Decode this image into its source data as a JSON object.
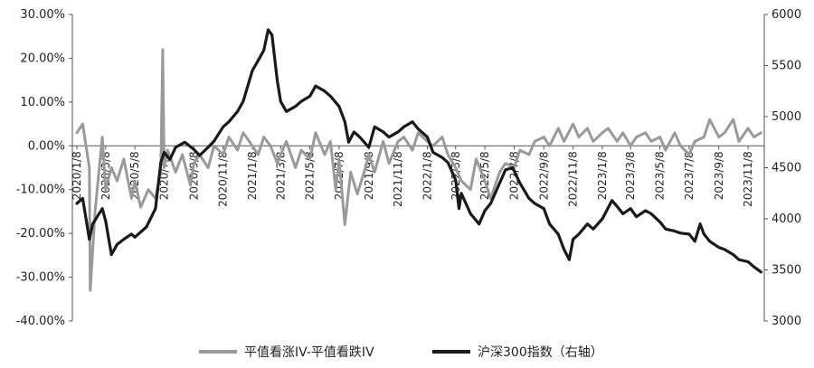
{
  "chart_data": {
    "type": "line",
    "grid": false,
    "legend_position": "bottom",
    "left_axis": {
      "ylim": [
        -0.4,
        0.3
      ],
      "ticks": [
        -0.4,
        -0.3,
        -0.2,
        -0.1,
        0.0,
        0.1,
        0.2,
        0.3
      ],
      "tick_labels": [
        "-40.00%",
        "-30.00%",
        "-20.00%",
        "-10.00%",
        "0.00%",
        "10.00%",
        "20.00%",
        "30.00%"
      ]
    },
    "right_axis": {
      "ylim": [
        3000,
        6000
      ],
      "ticks": [
        3000,
        3500,
        4000,
        4500,
        5000,
        5500,
        6000
      ],
      "tick_labels": [
        "3000",
        "3500",
        "4000",
        "4500",
        "5000",
        "5500",
        "6000"
      ]
    },
    "x_tick_labels": [
      "2020/1/8",
      "2020/3/8",
      "2020/5/8",
      "2020/7/8",
      "2020/9/8",
      "2020/11/8",
      "2021/1/8",
      "2021/3/8",
      "2021/5/8",
      "2021/7/8",
      "2021/9/8",
      "2021/11/8",
      "2022/1/8",
      "2022/3/8",
      "2022/5/8",
      "2022/7/8",
      "2022/9/8",
      "2022/11/8",
      "2023/1/8",
      "2023/3/8",
      "2023/5/8",
      "2023/7/8",
      "2023/9/8",
      "2023/11/8"
    ],
    "series": [
      {
        "name": "平值看涨IV-平值看跌IV",
        "axis": "left",
        "color": "#9a9a9a",
        "x": [
          "2020/1/8",
          "2020/1/20",
          "2020/2/3",
          "2020/2/5",
          "2020/2/15",
          "2020/3/1",
          "2020/3/8",
          "2020/3/20",
          "2020/4/1",
          "2020/4/15",
          "2020/5/1",
          "2020/5/8",
          "2020/5/20",
          "2020/6/5",
          "2020/6/20",
          "2020/7/1",
          "2020/7/5",
          "2020/7/8",
          "2020/7/15",
          "2020/8/1",
          "2020/8/15",
          "2020/9/1",
          "2020/9/8",
          "2020/9/20",
          "2020/10/8",
          "2020/10/20",
          "2020/11/8",
          "2020/11/20",
          "2020/12/8",
          "2020/12/20",
          "2021/1/8",
          "2021/1/20",
          "2021/2/1",
          "2021/2/15",
          "2021/3/1",
          "2021/3/8",
          "2021/3/20",
          "2021/4/8",
          "2021/4/20",
          "2021/5/8",
          "2021/5/20",
          "2021/6/8",
          "2021/6/20",
          "2021/7/1",
          "2021/7/8",
          "2021/7/20",
          "2021/8/1",
          "2021/8/15",
          "2021/9/1",
          "2021/9/8",
          "2021/9/20",
          "2021/10/8",
          "2021/10/20",
          "2021/11/8",
          "2021/11/20",
          "2021/12/8",
          "2021/12/20",
          "2022/1/8",
          "2022/1/20",
          "2022/2/8",
          "2022/2/20",
          "2022/3/8",
          "2022/3/20",
          "2022/4/8",
          "2022/4/20",
          "2022/5/8",
          "2022/5/20",
          "2022/6/8",
          "2022/6/20",
          "2022/7/8",
          "2022/7/20",
          "2022/8/8",
          "2022/8/20",
          "2022/9/8",
          "2022/9/20",
          "2022/10/8",
          "2022/10/20",
          "2022/11/8",
          "2022/11/20",
          "2022/12/8",
          "2022/12/20",
          "2023/1/8",
          "2023/1/20",
          "2023/2/8",
          "2023/2/20",
          "2023/3/8",
          "2023/3/20",
          "2023/4/8",
          "2023/4/20",
          "2023/5/8",
          "2023/5/20",
          "2023/6/8",
          "2023/6/20",
          "2023/7/8",
          "2023/7/20",
          "2023/8/8",
          "2023/8/20",
          "2023/9/8",
          "2023/9/20",
          "2023/10/8",
          "2023/10/20",
          "2023/11/8",
          "2023/11/20",
          "2023/12/5"
        ],
        "values": [
          0.03,
          0.05,
          -0.05,
          -0.33,
          -0.15,
          0.02,
          -0.1,
          -0.05,
          -0.08,
          -0.03,
          -0.12,
          -0.08,
          -0.14,
          -0.1,
          -0.12,
          -0.06,
          0.22,
          -0.05,
          -0.01,
          -0.06,
          -0.02,
          -0.09,
          -0.04,
          -0.02,
          -0.05,
          0.0,
          -0.02,
          0.02,
          -0.01,
          0.03,
          0.0,
          -0.02,
          0.02,
          0.0,
          -0.04,
          -0.02,
          0.01,
          -0.05,
          -0.01,
          -0.03,
          0.03,
          -0.02,
          0.01,
          -0.1,
          -0.03,
          -0.18,
          -0.06,
          -0.11,
          -0.05,
          -0.02,
          -0.06,
          0.01,
          -0.04,
          0.01,
          0.02,
          -0.01,
          0.03,
          0.01,
          0.0,
          0.02,
          -0.02,
          -0.05,
          -0.08,
          -0.1,
          -0.03,
          -0.08,
          -0.12,
          -0.06,
          -0.04,
          -0.05,
          -0.01,
          -0.02,
          0.01,
          0.02,
          0.0,
          0.04,
          0.01,
          0.05,
          0.02,
          0.04,
          0.01,
          0.03,
          0.04,
          0.01,
          0.03,
          0.0,
          0.02,
          0.03,
          0.01,
          0.02,
          -0.01,
          0.03,
          0.0,
          -0.02,
          0.01,
          0.02,
          0.06,
          0.02,
          0.03,
          0.06,
          0.01,
          0.04,
          0.02,
          0.03
        ]
      },
      {
        "name": "沪深300指数（右轴）",
        "axis": "right",
        "color": "#1a1a1a",
        "x": [
          "2020/1/8",
          "2020/1/20",
          "2020/2/3",
          "2020/2/10",
          "2020/3/1",
          "2020/3/8",
          "2020/3/20",
          "2020/4/1",
          "2020/4/15",
          "2020/5/1",
          "2020/5/8",
          "2020/5/20",
          "2020/6/1",
          "2020/6/20",
          "2020/7/1",
          "2020/7/8",
          "2020/7/20",
          "2020/8/1",
          "2020/8/20",
          "2020/9/8",
          "2020/9/20",
          "2020/10/8",
          "2020/10/20",
          "2020/11/8",
          "2020/11/20",
          "2020/12/8",
          "2020/12/20",
          "2021/1/8",
          "2021/1/20",
          "2021/2/1",
          "2021/2/10",
          "2021/2/18",
          "2021/3/1",
          "2021/3/8",
          "2021/3/20",
          "2021/4/8",
          "2021/4/20",
          "2021/5/8",
          "2021/5/20",
          "2021/6/8",
          "2021/6/20",
          "2021/7/8",
          "2021/7/20",
          "2021/7/28",
          "2021/8/8",
          "2021/8/20",
          "2021/9/8",
          "2021/9/20",
          "2021/10/8",
          "2021/10/20",
          "2021/11/8",
          "2021/11/20",
          "2021/12/8",
          "2021/12/20",
          "2022/1/8",
          "2022/1/20",
          "2022/2/8",
          "2022/2/20",
          "2022/3/8",
          "2022/3/15",
          "2022/3/20",
          "2022/4/8",
          "2022/4/26",
          "2022/5/8",
          "2022/5/20",
          "2022/6/8",
          "2022/6/20",
          "2022/7/5",
          "2022/7/20",
          "2022/8/8",
          "2022/8/20",
          "2022/9/8",
          "2022/9/20",
          "2022/10/8",
          "2022/10/20",
          "2022/10/31",
          "2022/11/8",
          "2022/11/20",
          "2022/12/8",
          "2022/12/20",
          "2023/1/8",
          "2023/1/28",
          "2023/2/8",
          "2023/2/20",
          "2023/3/8",
          "2023/3/20",
          "2023/4/8",
          "2023/4/20",
          "2023/5/8",
          "2023/5/20",
          "2023/6/8",
          "2023/6/20",
          "2023/7/8",
          "2023/7/20",
          "2023/7/31",
          "2023/8/8",
          "2023/8/20",
          "2023/9/8",
          "2023/9/20",
          "2023/10/8",
          "2023/10/20",
          "2023/11/8",
          "2023/11/20",
          "2023/12/5"
        ],
        "values": [
          4150,
          4200,
          3800,
          3950,
          4100,
          3980,
          3650,
          3750,
          3800,
          3850,
          3820,
          3870,
          3920,
          4100,
          4550,
          4650,
          4580,
          4700,
          4750,
          4680,
          4620,
          4700,
          4760,
          4900,
          4950,
          5050,
          5150,
          5450,
          5550,
          5650,
          5850,
          5800,
          5350,
          5150,
          5050,
          5100,
          5150,
          5200,
          5300,
          5250,
          5200,
          5100,
          4950,
          4750,
          4850,
          4800,
          4700,
          4900,
          4850,
          4800,
          4850,
          4900,
          4950,
          4880,
          4800,
          4650,
          4600,
          4550,
          4380,
          4100,
          4250,
          4050,
          3950,
          4080,
          4150,
          4350,
          4480,
          4500,
          4350,
          4200,
          4150,
          4100,
          3950,
          3850,
          3700,
          3600,
          3800,
          3850,
          3950,
          3900,
          4000,
          4180,
          4120,
          4050,
          4100,
          4020,
          4080,
          4050,
          3970,
          3900,
          3880,
          3860,
          3850,
          3780,
          3950,
          3850,
          3780,
          3720,
          3700,
          3650,
          3600,
          3580,
          3530,
          3480
        ]
      }
    ]
  }
}
